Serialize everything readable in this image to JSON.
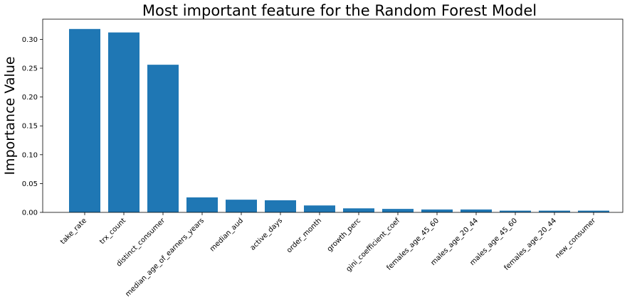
{
  "chart_data": {
    "type": "bar",
    "title": "Most important feature for the Random Forest Model",
    "xlabel": "",
    "ylabel": "Importance Value",
    "categories": [
      "take_rate",
      "trx_count",
      "distinct_consumer",
      "median_age_of_earners_years",
      "median_aud",
      "active_days",
      "order_month",
      "growth_perc",
      "gini_coefficient_coef",
      "females_age_45_60",
      "males_age_20_44",
      "males_age_45_60",
      "females_age_20_44",
      "new_consumer"
    ],
    "values": [
      0.318,
      0.312,
      0.256,
      0.026,
      0.022,
      0.021,
      0.012,
      0.007,
      0.006,
      0.005,
      0.005,
      0.003,
      0.003,
      0.003
    ],
    "ylim": [
      0,
      0.335
    ],
    "yticks": [
      "0.00",
      "0.05",
      "0.10",
      "0.15",
      "0.20",
      "0.25",
      "0.30"
    ],
    "grid": false,
    "bar_color": "#1f77b4"
  }
}
